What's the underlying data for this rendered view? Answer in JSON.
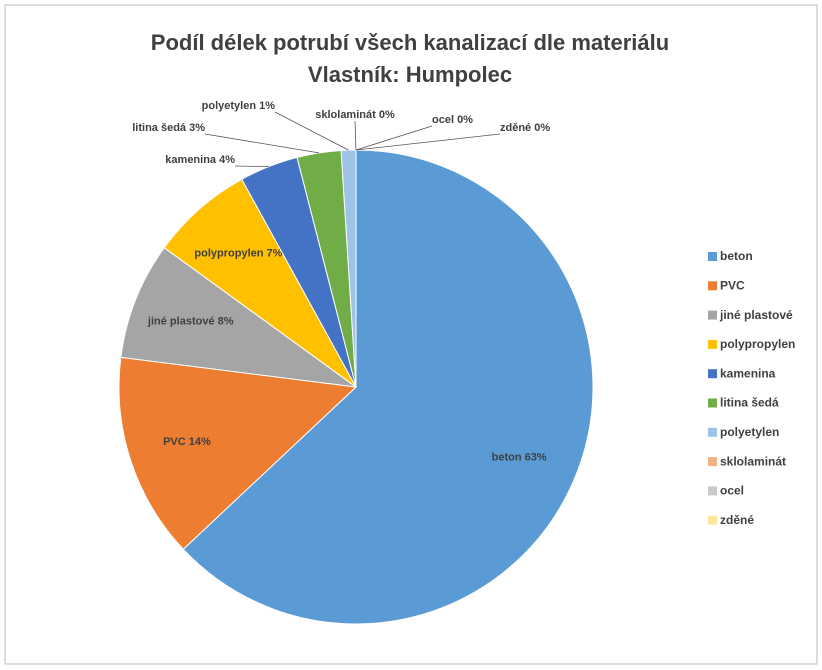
{
  "chart_data": {
    "type": "pie",
    "title": "Podíl délek potrubí všech kanalizací dle materiálu",
    "subtitle": "Vlastník: Humpolec",
    "categories": [
      "beton",
      "PVC",
      "jiné plastové",
      "polypropylen",
      "kamenina",
      "litina šedá",
      "polyetylen",
      "sklolaminát",
      "ocel",
      "zděné"
    ],
    "values": [
      63,
      14,
      8,
      7,
      4,
      3,
      1,
      0,
      0,
      0
    ],
    "value_labels": [
      "beton 63%",
      "PVC 14%",
      "jiné plastové 8%",
      "polypropylen 7%",
      "kamenina 4%",
      "litina šedá 3%",
      "polyetylen 1%",
      "sklolaminát 0%",
      "ocel 0%",
      "zděné 0%"
    ],
    "colors": [
      "#5b9bd5",
      "#ed7d31",
      "#a5a5a5",
      "#ffc000",
      "#4472c4",
      "#70ad47",
      "#9dc3e6",
      "#f4b183",
      "#c9c9c9",
      "#ffe699"
    ],
    "legend": "right"
  }
}
